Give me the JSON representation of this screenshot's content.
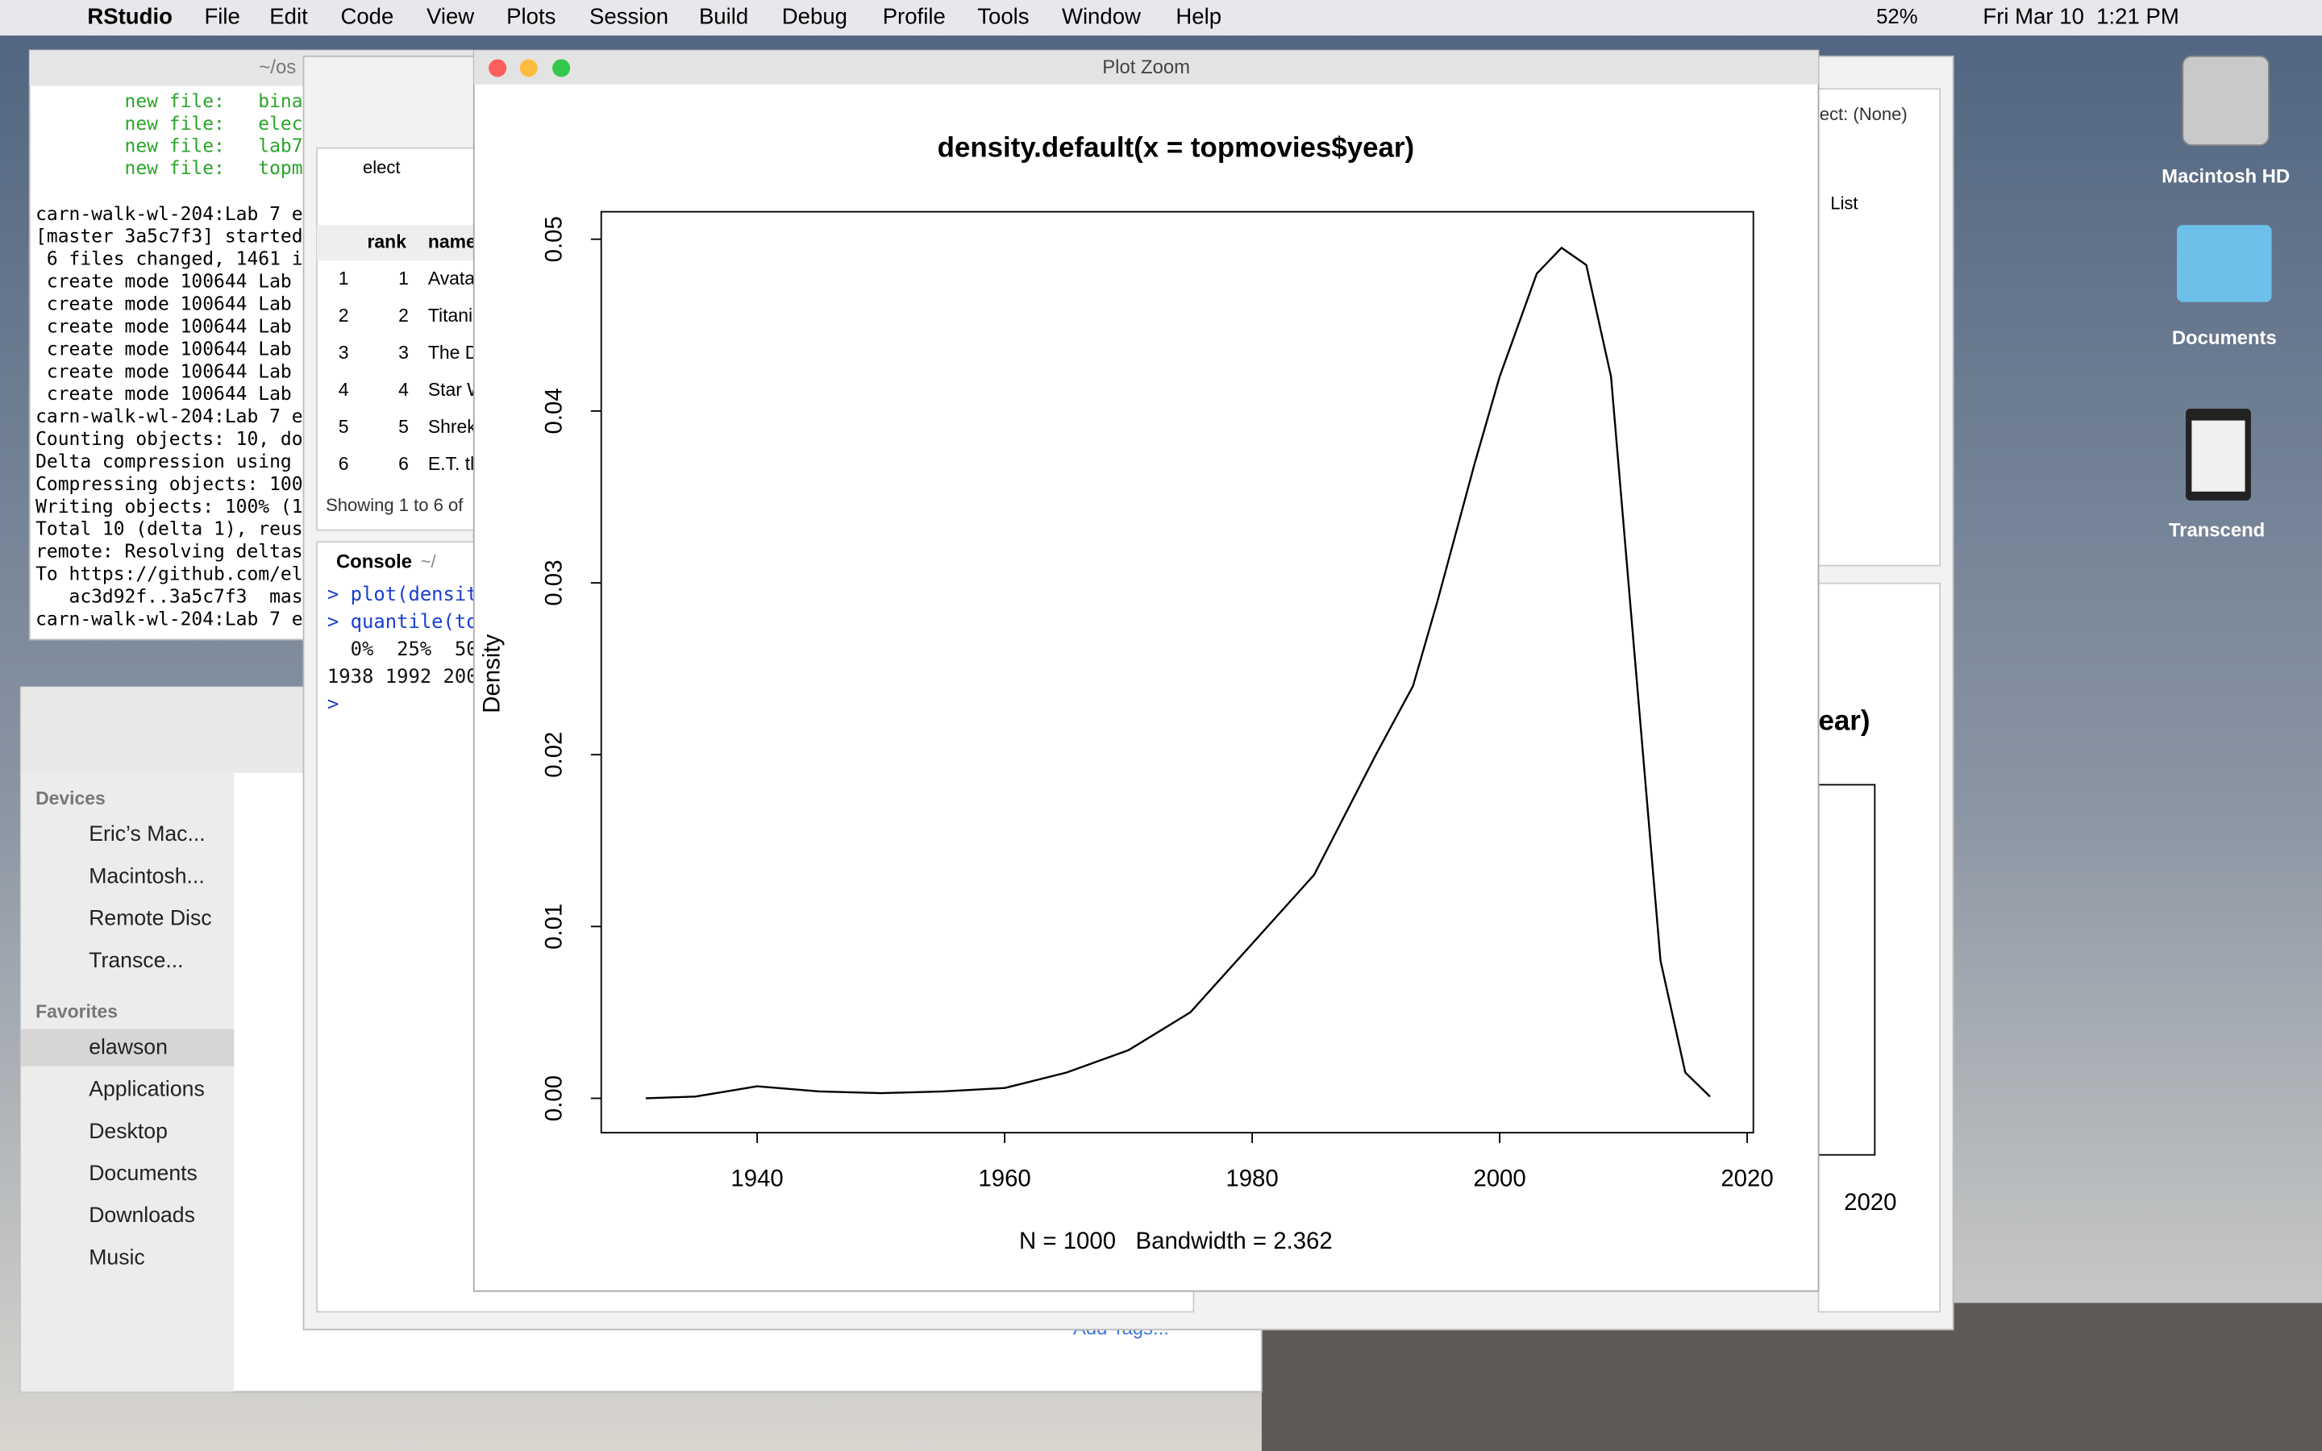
{
  "menubar": {
    "app": "RStudio",
    "menus": [
      "File",
      "Edit",
      "Code",
      "View",
      "Plots",
      "Session",
      "Build",
      "Debug",
      "Profile",
      "Tools",
      "Window",
      "Help"
    ],
    "battery": "52%",
    "datetime": "Fri Mar 10  1:21 PM"
  },
  "terminal": {
    "title": "~/os",
    "status_lines": [
      "        new file:   bina",
      "        new file:   elec",
      "        new file:   lab7",
      "        new file:   topm"
    ],
    "output_lines": [
      "carn-walk-wl-204:Lab 7 e",
      "[master 3a5c7f3] started",
      " 6 files changed, 1461 i",
      " create mode 100644 Lab",
      " create mode 100644 Lab",
      " create mode 100644 Lab",
      " create mode 100644 Lab",
      " create mode 100644 Lab",
      " create mode 100644 Lab",
      "carn-walk-wl-204:Lab 7 e",
      "Counting objects: 10, do",
      "Delta compression using",
      "Compressing objects: 100",
      "Writing objects: 100% (1",
      "Total 10 (delta 1), reus",
      "remote: Resolving deltas",
      "To https://github.com/el",
      "   ac3d92f..3a5c7f3  mas",
      "carn-walk-wl-204:Lab 7 e"
    ]
  },
  "data_viewer": {
    "tab": "elect",
    "columns": [
      "rank",
      "name"
    ],
    "rows": [
      [
        "1",
        "1",
        "Avata"
      ],
      [
        "2",
        "2",
        "Titani"
      ],
      [
        "3",
        "3",
        "The D"
      ],
      [
        "4",
        "4",
        "Star W"
      ],
      [
        "5",
        "5",
        "Shrek"
      ],
      [
        "6",
        "6",
        "E.T. tl"
      ]
    ],
    "footer": "Showing 1 to 6 of"
  },
  "console": {
    "title": "Console",
    "path": "~/",
    "lines": [
      "> plot(densit",
      "> quantile(to",
      "  0%  25%  50",
      "1938 1992 200",
      ">"
    ]
  },
  "finder": {
    "devices_label": "Devices",
    "devices": [
      "Eric’s Mac...",
      "Macintosh...",
      "Remote Disc",
      "Transce..."
    ],
    "favorites_label": "Favorites",
    "favorites": [
      "elawson",
      "Applications",
      "Desktop",
      "Documents",
      "Downloads",
      "Music"
    ],
    "footer_link": "Add Tags..."
  },
  "rstudio_right": {
    "object": "ject: (None)",
    "view": "List",
    "plot_title": "ear)",
    "xtick": "2020"
  },
  "desktop": {
    "icons": [
      "Macintosh HD",
      "Documents",
      "Transcend"
    ]
  },
  "plot_zoom": {
    "window_title": "Plot Zoom",
    "plot": {
      "type": "line",
      "title": "density.default(x = topmovies$year)",
      "ylabel": "Density",
      "xlabel": "N = 1000   Bandwidth = 2.362",
      "color": "#000000",
      "x": [
        1931,
        1935,
        1940,
        1945,
        1950,
        1955,
        1960,
        1965,
        1970,
        1975,
        1980,
        1985,
        1990,
        1993,
        1995,
        1998,
        2000,
        2003,
        2005,
        2007,
        2009,
        2011,
        2013,
        2015,
        2017
      ],
      "values": [
        0.0,
        0.0001,
        0.0007,
        0.0004,
        0.0003,
        0.0004,
        0.0006,
        0.0015,
        0.0028,
        0.005,
        0.009,
        0.013,
        0.02,
        0.024,
        0.029,
        0.037,
        0.042,
        0.048,
        0.0495,
        0.0485,
        0.042,
        0.025,
        0.008,
        0.0015,
        0.0001
      ],
      "xlim": [
        1927.4,
        2020.5
      ],
      "ylim": [
        -0.002,
        0.0516
      ],
      "xticks": [
        1940,
        1960,
        1980,
        2000,
        2020
      ],
      "yticks": [
        {
          "value": 0,
          "label": "0.00"
        },
        0.01,
        0.02,
        0.03,
        0.04,
        0.05
      ]
    }
  }
}
